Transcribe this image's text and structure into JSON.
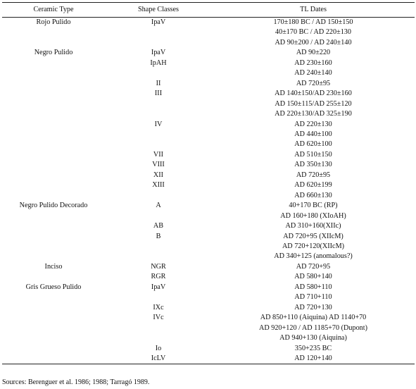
{
  "table": {
    "headers": [
      "Ceramic Type",
      "Shape Classes",
      "TL Dates"
    ],
    "rows": [
      [
        "Rojo Pulido",
        "IpaV",
        "170±180 BC / AD 150±150"
      ],
      [
        "",
        "",
        "40±170 BC / AD 220±130"
      ],
      [
        "",
        "",
        "AD 90±200 / AD 240±140"
      ],
      [
        "Negro Pulido",
        "IpaV",
        "AD 90±220"
      ],
      [
        "",
        "IpAH",
        "AD 230±160"
      ],
      [
        "",
        "",
        "AD 240±140"
      ],
      [
        "",
        "II",
        "AD 720±95"
      ],
      [
        "",
        "III",
        "AD 140±150/AD 230±160"
      ],
      [
        "",
        "",
        "AD 150±115/AD 255±120"
      ],
      [
        "",
        "",
        "AD 220±130/AD 325±190"
      ],
      [
        "",
        "IV",
        "AD 220±130"
      ],
      [
        "",
        "",
        "AD 440±100"
      ],
      [
        "",
        "",
        "AD 620±100"
      ],
      [
        "",
        "VII",
        "AD 510±150"
      ],
      [
        "",
        "VIII",
        "AD 350±130"
      ],
      [
        "",
        "XII",
        "AD 720±95"
      ],
      [
        "",
        "XIII",
        "AD 620±199"
      ],
      [
        "",
        "",
        "AD 660±130"
      ],
      [
        "Negro Pulido Decorado",
        "A",
        "40+170 BC (RP)"
      ],
      [
        "",
        "",
        "AD 160+180 (XIoAH)"
      ],
      [
        "",
        "AB",
        "AD 310+160(XIIc)"
      ],
      [
        "",
        "B",
        "AD 720+95 (XIIcM)"
      ],
      [
        "",
        "",
        "AD 720+120(XIIcM)"
      ],
      [
        "",
        "",
        "AD 340+125 (anomalous?)"
      ],
      [
        "Inciso",
        "NGR",
        "AD 720+95"
      ],
      [
        "",
        "RGR",
        "AD 580+140"
      ],
      [
        "Gris Grueso Pulido",
        "IpaV",
        "AD 580+110"
      ],
      [
        "",
        "",
        "AD 710+110"
      ],
      [
        "",
        "IXc",
        "AD 720+130"
      ],
      [
        "",
        "IVc",
        "AD 850+110 (Aiquina) AD 1140+70"
      ],
      [
        "",
        "",
        "AD 920+120 / AD 1185+70 (Dupont)"
      ],
      [
        "",
        "",
        "AD 940+130 (Aiquina)"
      ],
      [
        "",
        "Io",
        "350+235 BC"
      ],
      [
        "",
        "IcLV",
        "AD 120+140"
      ]
    ]
  },
  "source": "Sources: Berenguer et al. 1986; 1988; Tarragó 1989."
}
